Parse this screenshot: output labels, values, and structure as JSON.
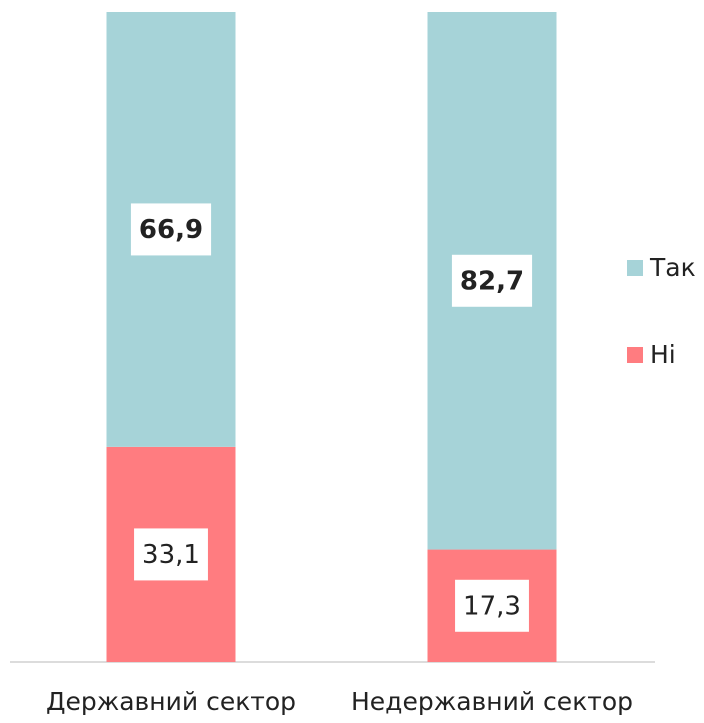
{
  "chart_data": {
    "type": "stacked_bar",
    "categories": [
      "Державний сектор",
      "Недержавний сектор"
    ],
    "series": [
      {
        "name": "Так",
        "color": "#a6d3d8",
        "values": [
          66.9,
          82.7
        ],
        "value_labels": [
          "66,9",
          "82,7"
        ]
      },
      {
        "name": "Ні",
        "color": "#ff7c80",
        "values": [
          33.1,
          17.3
        ],
        "value_labels": [
          "33,1",
          "17,3"
        ]
      }
    ],
    "ylim": [
      0,
      100
    ],
    "legend": "right"
  }
}
